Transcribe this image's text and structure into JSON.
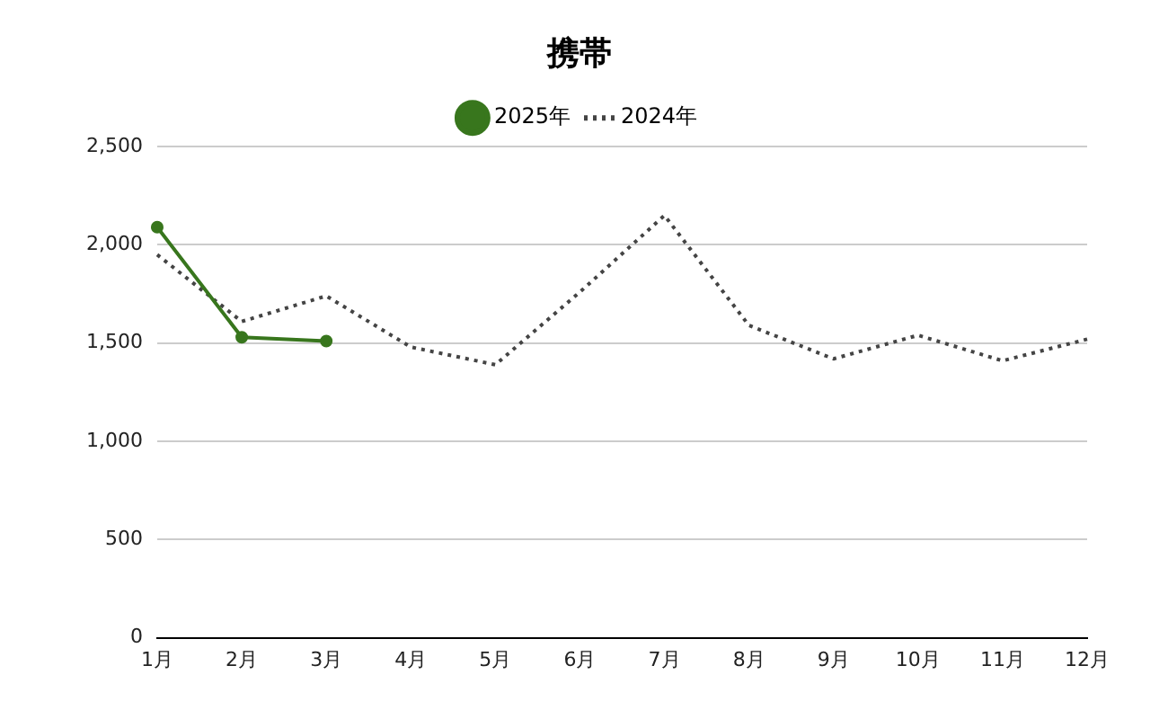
{
  "chart_data": {
    "type": "line",
    "title": "携帯",
    "categories": [
      "1月",
      "2月",
      "3月",
      "4月",
      "5月",
      "6月",
      "7月",
      "8月",
      "9月",
      "10月",
      "11月",
      "12月"
    ],
    "series": [
      {
        "name": "2025年",
        "color": "#38761d",
        "marker": "circle",
        "line_style": "solid",
        "values": [
          2090,
          1530,
          1510,
          null,
          null,
          null,
          null,
          null,
          null,
          null,
          null,
          null
        ]
      },
      {
        "name": "2024年",
        "color": "#444444",
        "marker": "none",
        "line_style": "dotted",
        "values": [
          1950,
          1610,
          1740,
          1480,
          1390,
          1760,
          2150,
          1590,
          1420,
          1540,
          1410,
          1520
        ]
      }
    ],
    "ylim": [
      0,
      2500
    ],
    "yticks": [
      0,
      500,
      {
        "value": 1000,
        "label": "1,000"
      },
      {
        "value": 1500,
        "label": "1,500"
      },
      {
        "value": 2000,
        "label": "2,000"
      },
      {
        "value": 2500,
        "label": "2,500"
      }
    ],
    "grid": "y",
    "legend": "top"
  }
}
